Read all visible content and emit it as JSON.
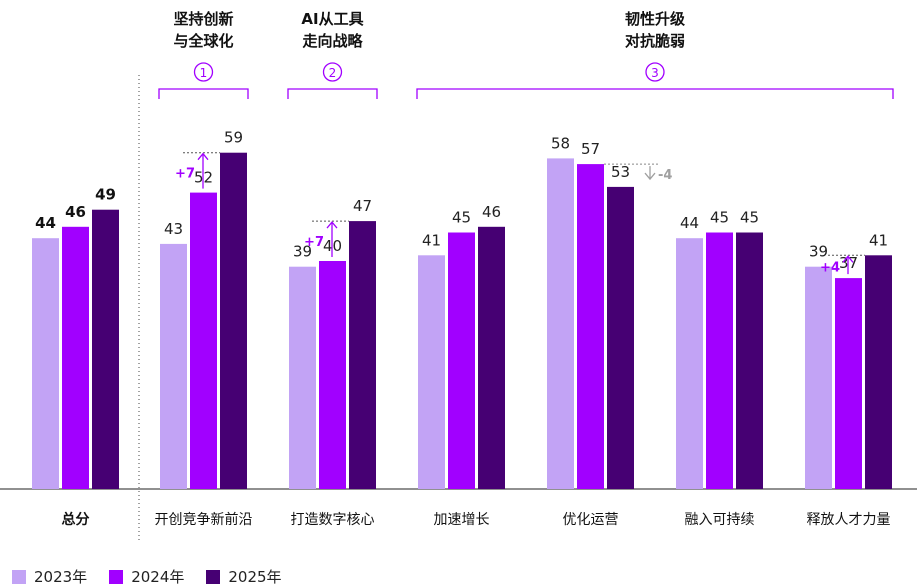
{
  "chart_data": {
    "type": "bar",
    "categories": [
      "总分",
      "开创竞争新前沿",
      "打造数字核心",
      "加速增长",
      "优化运营",
      "融入可持续",
      "释放人才力量"
    ],
    "series": [
      {
        "name": "2023年",
        "values": [
          44,
          43,
          39,
          41,
          58,
          44,
          39
        ]
      },
      {
        "name": "2024年",
        "values": [
          46,
          52,
          40,
          45,
          57,
          45,
          37
        ]
      },
      {
        "name": "2025年",
        "values": [
          49,
          59,
          47,
          46,
          53,
          45,
          41
        ]
      }
    ],
    "ylim": [
      0,
      62
    ],
    "groups": [
      {
        "title_line1": "坚持创新",
        "title_line2": "与全球化",
        "marker": "①",
        "spans": [
          1,
          1
        ]
      },
      {
        "title_line1": "AI从工具",
        "title_line2": "走向战略",
        "marker": "②",
        "spans": [
          2,
          2
        ]
      },
      {
        "title_line1": "韧性升级",
        "title_line2": "对抗脆弱",
        "marker": "③",
        "spans": [
          3,
          6
        ]
      }
    ],
    "annotations": [
      {
        "category": 1,
        "label": "+7",
        "from": 52,
        "to": 59,
        "direction": "up",
        "color": "#a100ff"
      },
      {
        "category": 2,
        "label": "+7",
        "from": 40,
        "to": 47,
        "direction": "up",
        "color": "#a100ff"
      },
      {
        "category": 4,
        "label": "-4",
        "from": 57,
        "to": 53,
        "direction": "down",
        "color": "#a0a0a0"
      },
      {
        "category": 6,
        "label": "+4",
        "from": 37,
        "to": 41,
        "direction": "up",
        "color": "#a100ff"
      }
    ],
    "colors": {
      "2023": "#c2a3f5",
      "2024": "#a100ff",
      "2025": "#460073",
      "bracket": "#a100ff"
    },
    "legend_position": "bottom-left",
    "grid": false
  }
}
